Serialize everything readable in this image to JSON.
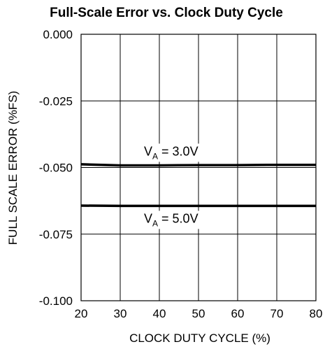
{
  "chart_data": {
    "type": "line",
    "title": "Full-Scale Error vs. Clock Duty Cycle",
    "xlabel": "CLOCK DUTY CYCLE (%)",
    "ylabel": "FULL SCALE ERROR (%FS)",
    "xlim": [
      20,
      80
    ],
    "ylim": [
      -0.1,
      0.0
    ],
    "x_ticks": [
      20,
      30,
      40,
      50,
      60,
      70,
      80
    ],
    "x_tick_labels": [
      "20",
      "30",
      "40",
      "50",
      "60",
      "70",
      "80"
    ],
    "y_ticks": [
      0.0,
      -0.025,
      -0.05,
      -0.075,
      -0.1
    ],
    "y_tick_labels": [
      "0.000",
      "-0.025",
      "-0.050",
      "-0.075",
      "-0.100"
    ],
    "grid": true,
    "series": [
      {
        "name_prefix": "V",
        "name_sub": "A",
        "name_suffix": " = 3.0V",
        "color": "#000000",
        "x": [
          20,
          30,
          40,
          50,
          60,
          70,
          80
        ],
        "y": [
          -0.0488,
          -0.0492,
          -0.0492,
          -0.0491,
          -0.0491,
          -0.049,
          -0.049
        ],
        "label_at": [
          43,
          -0.0455
        ]
      },
      {
        "name_prefix": "V",
        "name_sub": "A",
        "name_suffix": " = 5.0V",
        "color": "#000000",
        "x": [
          20,
          30,
          40,
          50,
          60,
          70,
          80
        ],
        "y": [
          -0.0643,
          -0.0644,
          -0.0644,
          -0.0644,
          -0.0644,
          -0.0644,
          -0.0644
        ],
        "label_at": [
          43,
          -0.0707
        ]
      }
    ]
  }
}
